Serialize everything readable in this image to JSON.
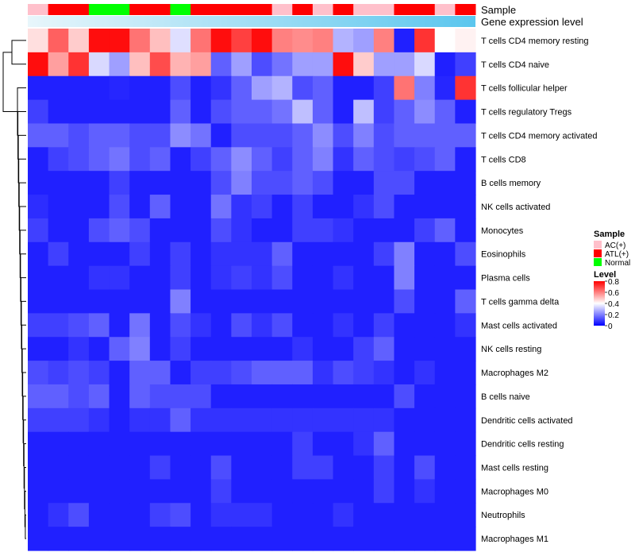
{
  "chart_data": {
    "type": "heatmap",
    "annotation_labels": {
      "sample": "Sample",
      "gene_expression": "Gene expression level"
    },
    "sample_groups": [
      "AC(+)",
      "ATL(+)",
      "ATL(+)",
      "Normal",
      "Normal",
      "ATL(+)",
      "ATL(+)",
      "Normal",
      "ATL(+)",
      "ATL(+)",
      "ATL(+)",
      "ATL(+)",
      "AC(+)",
      "ATL(+)",
      "AC(+)",
      "ATL(+)",
      "AC(+)",
      "AC(+)",
      "ATL(+)",
      "ATL(+)",
      "AC(+)",
      "ATL(+)"
    ],
    "rows": [
      "T cells CD4 memory resting",
      "T cells CD4 naive",
      "T cells follicular helper",
      "T cells regulatory  Tregs",
      "T cells CD4 memory activated",
      "T cells CD8",
      "B cells memory",
      "NK cells activated",
      "Monocytes",
      "Eosinophils",
      "Plasma cells",
      "T cells gamma delta",
      "Mast cells activated",
      "NK cells resting",
      "Macrophages M2",
      "B cells naive",
      "Dendritic cells activated",
      "Dendritic cells resting",
      "Mast cells resting",
      "Macrophages M0",
      "Neutrophils",
      "Macrophages M1"
    ],
    "values": [
      [
        0.45,
        0.65,
        0.48,
        0.78,
        0.78,
        0.62,
        0.5,
        0.35,
        0.62,
        0.78,
        0.7,
        0.78,
        0.6,
        0.58,
        0.6,
        0.28,
        0.25,
        0.6,
        0.05,
        0.72,
        0.4,
        0.42
      ],
      [
        0.78,
        0.55,
        0.72,
        0.34,
        0.25,
        0.5,
        0.68,
        0.52,
        0.55,
        0.15,
        0.25,
        0.12,
        0.18,
        0.25,
        0.25,
        0.78,
        0.48,
        0.25,
        0.25,
        0.34,
        0.05,
        0.1
      ],
      [
        0.05,
        0.05,
        0.05,
        0.05,
        0.06,
        0.05,
        0.05,
        0.12,
        0.05,
        0.08,
        0.15,
        0.25,
        0.28,
        0.12,
        0.15,
        0.05,
        0.05,
        0.1,
        0.62,
        0.2,
        0.06,
        0.72
      ],
      [
        0.1,
        0.05,
        0.05,
        0.05,
        0.05,
        0.05,
        0.05,
        0.15,
        0.05,
        0.12,
        0.15,
        0.15,
        0.18,
        0.3,
        0.15,
        0.05,
        0.3,
        0.1,
        0.15,
        0.22,
        0.15,
        0.05
      ],
      [
        0.15,
        0.15,
        0.12,
        0.15,
        0.15,
        0.12,
        0.12,
        0.22,
        0.18,
        0.05,
        0.12,
        0.12,
        0.12,
        0.15,
        0.22,
        0.12,
        0.2,
        0.12,
        0.15,
        0.15,
        0.15,
        0.15
      ],
      [
        0.05,
        0.1,
        0.12,
        0.15,
        0.18,
        0.12,
        0.15,
        0.05,
        0.1,
        0.15,
        0.22,
        0.15,
        0.1,
        0.15,
        0.2,
        0.08,
        0.15,
        0.12,
        0.1,
        0.12,
        0.15,
        0.05
      ],
      [
        0.05,
        0.05,
        0.05,
        0.05,
        0.1,
        0.05,
        0.05,
        0.05,
        0.05,
        0.12,
        0.2,
        0.12,
        0.12,
        0.15,
        0.12,
        0.05,
        0.05,
        0.12,
        0.12,
        0.05,
        0.05,
        0.05
      ],
      [
        0.07,
        0.05,
        0.05,
        0.05,
        0.12,
        0.05,
        0.15,
        0.05,
        0.05,
        0.18,
        0.08,
        0.1,
        0.05,
        0.1,
        0.05,
        0.05,
        0.08,
        0.12,
        0.05,
        0.05,
        0.05,
        0.05
      ],
      [
        0.1,
        0.05,
        0.05,
        0.12,
        0.15,
        0.12,
        0.05,
        0.05,
        0.05,
        0.12,
        0.08,
        0.05,
        0.05,
        0.1,
        0.1,
        0.08,
        0.05,
        0.05,
        0.05,
        0.1,
        0.15,
        0.05
      ],
      [
        0.05,
        0.1,
        0.05,
        0.05,
        0.05,
        0.1,
        0.05,
        0.1,
        0.05,
        0.08,
        0.08,
        0.08,
        0.15,
        0.05,
        0.05,
        0.05,
        0.05,
        0.1,
        0.2,
        0.05,
        0.05,
        0.12
      ],
      [
        0.05,
        0.05,
        0.05,
        0.08,
        0.08,
        0.05,
        0.05,
        0.1,
        0.05,
        0.08,
        0.1,
        0.08,
        0.12,
        0.05,
        0.05,
        0.08,
        0.05,
        0.05,
        0.2,
        0.05,
        0.05,
        0.05
      ],
      [
        0.05,
        0.05,
        0.05,
        0.05,
        0.05,
        0.05,
        0.05,
        0.2,
        0.05,
        0.05,
        0.05,
        0.05,
        0.05,
        0.05,
        0.05,
        0.05,
        0.05,
        0.05,
        0.12,
        0.05,
        0.05,
        0.15
      ],
      [
        0.1,
        0.1,
        0.12,
        0.15,
        0.05,
        0.18,
        0.05,
        0.12,
        0.08,
        0.05,
        0.12,
        0.08,
        0.12,
        0.05,
        0.05,
        0.08,
        0.05,
        0.1,
        0.05,
        0.05,
        0.05,
        0.08
      ],
      [
        0.05,
        0.05,
        0.08,
        0.05,
        0.15,
        0.2,
        0.05,
        0.1,
        0.05,
        0.05,
        0.05,
        0.05,
        0.05,
        0.08,
        0.05,
        0.05,
        0.1,
        0.15,
        0.05,
        0.05,
        0.05,
        0.05
      ],
      [
        0.12,
        0.1,
        0.12,
        0.1,
        0.05,
        0.15,
        0.15,
        0.05,
        0.1,
        0.1,
        0.12,
        0.15,
        0.15,
        0.15,
        0.08,
        0.12,
        0.1,
        0.08,
        0.05,
        0.08,
        0.05,
        0.05
      ],
      [
        0.15,
        0.15,
        0.12,
        0.15,
        0.05,
        0.15,
        0.12,
        0.12,
        0.12,
        0.05,
        0.05,
        0.05,
        0.05,
        0.05,
        0.05,
        0.05,
        0.05,
        0.05,
        0.12,
        0.05,
        0.05,
        0.05
      ],
      [
        0.1,
        0.1,
        0.1,
        0.08,
        0.05,
        0.08,
        0.08,
        0.15,
        0.08,
        0.08,
        0.08,
        0.08,
        0.08,
        0.08,
        0.08,
        0.08,
        0.08,
        0.08,
        0.05,
        0.05,
        0.05,
        0.05
      ],
      [
        0.05,
        0.05,
        0.05,
        0.05,
        0.05,
        0.05,
        0.05,
        0.05,
        0.05,
        0.05,
        0.05,
        0.05,
        0.05,
        0.1,
        0.05,
        0.05,
        0.08,
        0.15,
        0.05,
        0.05,
        0.05,
        0.05
      ],
      [
        0.05,
        0.05,
        0.05,
        0.05,
        0.05,
        0.05,
        0.1,
        0.05,
        0.05,
        0.12,
        0.05,
        0.05,
        0.05,
        0.1,
        0.1,
        0.05,
        0.05,
        0.1,
        0.05,
        0.12,
        0.05,
        0.05
      ],
      [
        0.05,
        0.05,
        0.05,
        0.05,
        0.05,
        0.05,
        0.05,
        0.05,
        0.05,
        0.1,
        0.05,
        0.05,
        0.05,
        0.05,
        0.05,
        0.05,
        0.05,
        0.1,
        0.05,
        0.08,
        0.05,
        0.05
      ],
      [
        0.05,
        0.08,
        0.12,
        0.05,
        0.05,
        0.05,
        0.1,
        0.12,
        0.05,
        0.08,
        0.08,
        0.08,
        0.05,
        0.05,
        0.05,
        0.08,
        0.05,
        0.05,
        0.05,
        0.05,
        0.05,
        0.05
      ],
      [
        0.05,
        0.05,
        0.05,
        0.05,
        0.05,
        0.05,
        0.05,
        0.05,
        0.05,
        0.05,
        0.05,
        0.05,
        0.05,
        0.05,
        0.05,
        0.05,
        0.05,
        0.05,
        0.05,
        0.05,
        0.05,
        0.05
      ]
    ],
    "legend": {
      "sample_title": "Sample",
      "sample_items": [
        {
          "label": "AC(+)",
          "color": "#FFC0CB"
        },
        {
          "label": "ATL(+)",
          "color": "#FF0000"
        },
        {
          "label": "Normal",
          "color": "#00FF00"
        }
      ],
      "level_title": "Level",
      "level_ticks": [
        0.8,
        0.6,
        0.4,
        0.2,
        0
      ],
      "level_range": [
        0,
        0.8
      ]
    },
    "gene_expression_color": "#5BC6EE",
    "gene_expression_color_start": "#E8F6FB",
    "color_scale": {
      "low": "#0000FF",
      "mid": "#FFFFFF",
      "high": "#FF0000",
      "midpoint": 0.4
    }
  }
}
